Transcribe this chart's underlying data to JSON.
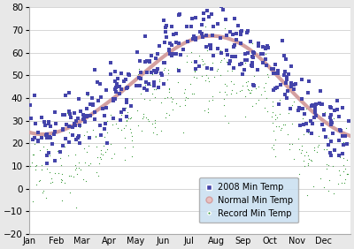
{
  "ylim": [
    -20,
    80
  ],
  "months": [
    "Jan",
    "Feb",
    "Mar",
    "Apr",
    "May",
    "Jun",
    "Jul",
    "Aug",
    "Sep",
    "Oct",
    "Nov",
    "Dec"
  ],
  "normal_min": [
    24,
    27,
    34,
    43,
    53,
    62,
    67,
    66,
    59,
    47,
    35,
    26
  ],
  "color_2008": "#4444aa",
  "color_normal_line": "#d4a0a0",
  "color_record": "#339933",
  "fig_bg": "#e8e8e8",
  "plot_bg": "#ffffff",
  "legend_bg": "#c8dff0",
  "yticks": [
    -20,
    -10,
    0,
    10,
    20,
    30,
    40,
    50,
    60,
    70,
    80
  ],
  "grid_color": "#d0d0d0"
}
